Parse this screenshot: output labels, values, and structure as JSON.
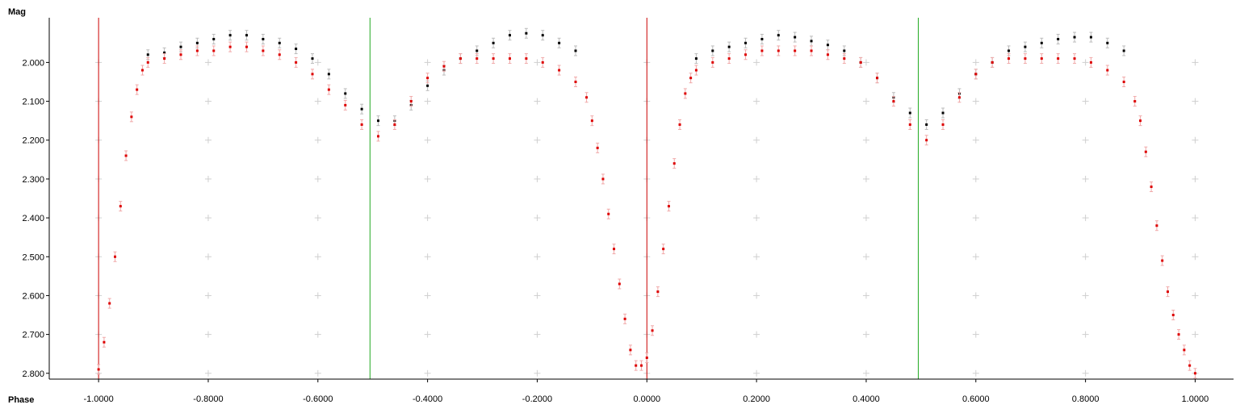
{
  "chart_data": {
    "type": "scatter",
    "title": "",
    "xlabel": "Phase",
    "ylabel": "Mag",
    "xlim": [
      -1.09,
      1.07
    ],
    "ylim": [
      2.815,
      1.885
    ],
    "y_inverted": true,
    "grid": "plus-markers",
    "legend": "none",
    "x_ticks": [
      -1.0,
      -0.8,
      -0.6,
      -0.4,
      -0.2,
      0.0,
      0.2,
      0.4,
      0.6,
      0.8,
      1.0
    ],
    "x_tick_labels": [
      "-1.0000",
      "-0.8000",
      "-0.6000",
      "-0.4000",
      "-0.2000",
      "0.0000",
      "0.2000",
      "0.4000",
      "0.6000",
      "0.8000",
      "1.0000"
    ],
    "y_ticks": [
      2.0,
      2.1,
      2.2,
      2.3,
      2.4,
      2.5,
      2.6,
      2.7,
      2.8
    ],
    "y_tick_labels": [
      "2.000",
      "2.100",
      "2.200",
      "2.300",
      "2.400",
      "2.500",
      "2.600",
      "2.700",
      "2.800"
    ],
    "vertical_markers": [
      {
        "x": -1.0,
        "color": "#cc0000"
      },
      {
        "x": -0.505,
        "color": "#22aa22"
      },
      {
        "x": 0.0,
        "color": "#cc0000"
      },
      {
        "x": 0.495,
        "color": "#22aa22"
      }
    ],
    "series": [
      {
        "color": "#000000",
        "error_color": "#bbbbbb",
        "x": [
          -0.91,
          -0.88,
          -0.85,
          -0.82,
          -0.79,
          -0.76,
          -0.73,
          -0.7,
          -0.67,
          -0.64,
          -0.61,
          -0.58,
          -0.55,
          -0.52,
          -0.49,
          -0.46,
          -0.43,
          -0.4,
          -0.37,
          -0.34,
          -0.31,
          -0.28,
          -0.25,
          -0.22,
          -0.19,
          -0.16,
          -0.13,
          0.09,
          0.12,
          0.15,
          0.18,
          0.21,
          0.24,
          0.27,
          0.3,
          0.33,
          0.36,
          0.39,
          0.42,
          0.45,
          0.48,
          0.51,
          0.54,
          0.57,
          0.6,
          0.63,
          0.66,
          0.69,
          0.72,
          0.75,
          0.78,
          0.81,
          0.84,
          0.87
        ],
        "y": [
          1.98,
          1.975,
          1.96,
          1.95,
          1.94,
          1.93,
          1.93,
          1.94,
          1.95,
          1.965,
          1.99,
          2.03,
          2.08,
          2.12,
          2.15,
          2.15,
          2.11,
          2.06,
          2.02,
          1.99,
          1.97,
          1.95,
          1.93,
          1.925,
          1.93,
          1.95,
          1.97,
          1.99,
          1.97,
          1.96,
          1.95,
          1.94,
          1.93,
          1.935,
          1.945,
          1.955,
          1.97,
          2.0,
          2.04,
          2.09,
          2.13,
          2.16,
          2.13,
          2.08,
          2.03,
          2.0,
          1.97,
          1.96,
          1.95,
          1.94,
          1.935,
          1.935,
          1.95,
          1.97
        ]
      },
      {
        "color": "#dd0000",
        "error_color": "#f0a8a8",
        "x": [
          -1.0,
          -0.99,
          -0.98,
          -0.97,
          -0.96,
          -0.95,
          -0.94,
          -0.93,
          -0.92,
          -0.91,
          -0.88,
          -0.85,
          -0.82,
          -0.79,
          -0.76,
          -0.73,
          -0.7,
          -0.67,
          -0.64,
          -0.61,
          -0.58,
          -0.55,
          -0.52,
          -0.49,
          -0.46,
          -0.43,
          -0.4,
          -0.37,
          -0.34,
          -0.31,
          -0.28,
          -0.25,
          -0.22,
          -0.19,
          -0.16,
          -0.13,
          -0.11,
          -0.1,
          -0.09,
          -0.08,
          -0.07,
          -0.06,
          -0.05,
          -0.04,
          -0.03,
          -0.02,
          -0.01,
          0.0,
          0.01,
          0.02,
          0.03,
          0.04,
          0.05,
          0.06,
          0.07,
          0.08,
          0.09,
          0.12,
          0.15,
          0.18,
          0.21,
          0.24,
          0.27,
          0.3,
          0.33,
          0.36,
          0.39,
          0.42,
          0.45,
          0.48,
          0.51,
          0.54,
          0.57,
          0.6,
          0.63,
          0.66,
          0.69,
          0.72,
          0.75,
          0.78,
          0.81,
          0.84,
          0.87,
          0.89,
          0.9,
          0.91,
          0.92,
          0.93,
          0.94,
          0.95,
          0.96,
          0.97,
          0.98,
          0.99,
          1.0
        ],
        "y": [
          2.79,
          2.72,
          2.62,
          2.5,
          2.37,
          2.24,
          2.14,
          2.07,
          2.02,
          2.0,
          1.99,
          1.98,
          1.97,
          1.97,
          1.96,
          1.96,
          1.97,
          1.98,
          2.0,
          2.03,
          2.07,
          2.11,
          2.16,
          2.19,
          2.16,
          2.1,
          2.04,
          2.01,
          1.99,
          1.99,
          1.99,
          1.99,
          1.99,
          2.0,
          2.02,
          2.05,
          2.09,
          2.15,
          2.22,
          2.3,
          2.39,
          2.48,
          2.57,
          2.66,
          2.74,
          2.78,
          2.78,
          2.76,
          2.69,
          2.59,
          2.48,
          2.37,
          2.26,
          2.16,
          2.08,
          2.04,
          2.02,
          2.0,
          1.99,
          1.98,
          1.97,
          1.97,
          1.97,
          1.97,
          1.98,
          1.99,
          2.0,
          2.04,
          2.1,
          2.16,
          2.2,
          2.16,
          2.09,
          2.03,
          2.0,
          1.99,
          1.99,
          1.99,
          1.99,
          1.99,
          2.0,
          2.02,
          2.05,
          2.1,
          2.15,
          2.23,
          2.32,
          2.42,
          2.51,
          2.59,
          2.65,
          2.7,
          2.74,
          2.78,
          2.8
        ]
      }
    ]
  }
}
